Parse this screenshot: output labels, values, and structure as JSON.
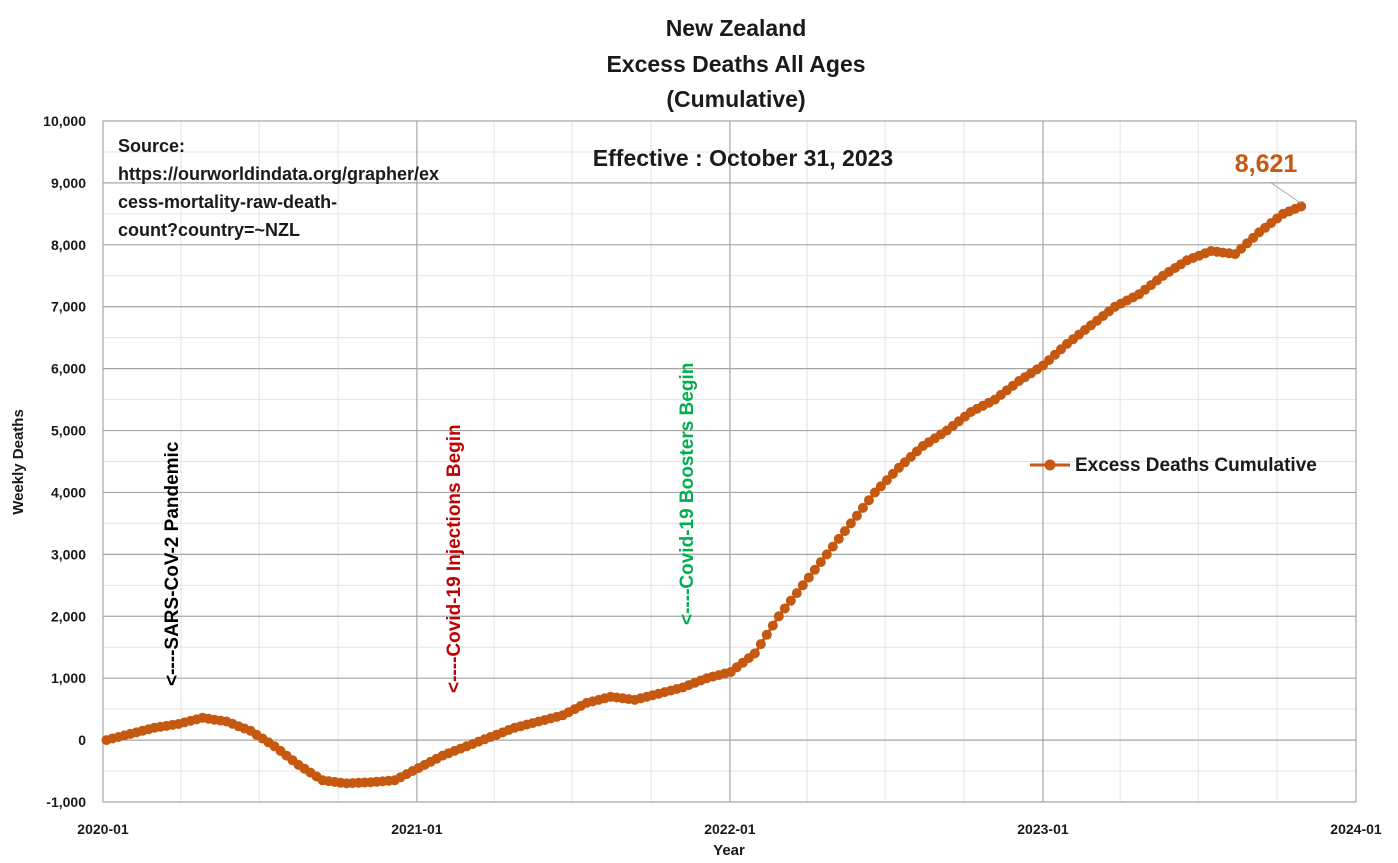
{
  "chart_data": {
    "type": "line",
    "title": [
      "New Zealand",
      "Excess Deaths All Ages",
      "(Cumulative)"
    ],
    "xlabel": "Year",
    "ylabel": "Weekly Deaths",
    "ylim": [
      -1000,
      10000
    ],
    "yticks": [
      -1000,
      0,
      1000,
      2000,
      3000,
      4000,
      5000,
      6000,
      7000,
      8000,
      9000,
      10000
    ],
    "ytick_labels": [
      "-1,000",
      "0",
      "1,000",
      "2,000",
      "3,000",
      "4,000",
      "5,000",
      "6,000",
      "7,000",
      "8,000",
      "9,000",
      "10,000"
    ],
    "xlim": [
      "2020-01-01",
      "2024-01-01"
    ],
    "xticks": [
      "2020-01-01",
      "2021-01-01",
      "2022-01-01",
      "2023-01-01",
      "2024-01-01"
    ],
    "xtick_labels": [
      "2020-01",
      "2021-01",
      "2022-01",
      "2023-01",
      "2024-01"
    ],
    "grid": true,
    "legend_position": "right",
    "series": [
      {
        "name": "Excess Deaths Cumulative",
        "color": "#C65911",
        "x": [
          "2020-01-05",
          "2020-02-02",
          "2020-03-01",
          "2020-03-29",
          "2020-04-26",
          "2020-05-24",
          "2020-06-21",
          "2020-07-19",
          "2020-08-16",
          "2020-09-13",
          "2020-10-11",
          "2020-11-08",
          "2020-12-06",
          "2021-01-03",
          "2021-01-31",
          "2021-02-28",
          "2021-03-28",
          "2021-04-25",
          "2021-05-23",
          "2021-06-20",
          "2021-07-18",
          "2021-08-15",
          "2021-09-12",
          "2021-10-10",
          "2021-11-07",
          "2021-12-05",
          "2022-01-02",
          "2022-01-30",
          "2022-02-27",
          "2022-03-27",
          "2022-04-24",
          "2022-05-22",
          "2022-06-19",
          "2022-07-17",
          "2022-08-14",
          "2022-09-11",
          "2022-10-09",
          "2022-11-06",
          "2022-12-04",
          "2023-01-01",
          "2023-01-29",
          "2023-02-26",
          "2023-03-26",
          "2023-04-23",
          "2023-05-21",
          "2023-06-18",
          "2023-07-16",
          "2023-08-13",
          "2023-09-10",
          "2023-10-08",
          "2023-10-29"
        ],
        "values": [
          0,
          100,
          200,
          260,
          360,
          300,
          150,
          -100,
          -400,
          -650,
          -700,
          -680,
          -650,
          -450,
          -250,
          -100,
          50,
          200,
          300,
          400,
          600,
          700,
          650,
          750,
          850,
          1000,
          1100,
          1400,
          2000,
          2500,
          3000,
          3500,
          4000,
          4400,
          4750,
          5000,
          5300,
          5500,
          5800,
          6050,
          6400,
          6700,
          7000,
          7200,
          7500,
          7750,
          7900,
          7850,
          8200,
          8500,
          8621
        ]
      }
    ],
    "annotations": [
      {
        "text": "<----SARS-CoV-2 Pandemic",
        "x": "2020-03-13",
        "color": "#000000"
      },
      {
        "text": "<----Covid-19 Injections Begin",
        "x": "2021-03-01",
        "color": "#C00000"
      },
      {
        "text": "<----Covid-19 Boosters Begin",
        "x": "2021-11-13",
        "color": "#00B050"
      },
      {
        "text": "Effective : October 31, 2023"
      },
      {
        "text": "Source: https://ourworldindata.org/grapher/excess-mortality-raw-death-count?country=~NZL"
      },
      {
        "text": "8,621",
        "color": "#C65911"
      }
    ]
  },
  "source_lines": [
    "Source:",
    "https://ourworldindata.org/grapher/ex",
    "cess-mortality-raw-death-",
    "count?country=~NZL"
  ]
}
